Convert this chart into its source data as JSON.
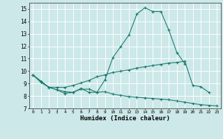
{
  "xlabel": "Humidex (Indice chaleur)",
  "bg_color": "#cce8e8",
  "grid_color": "#ffffff",
  "line_color": "#1a7a6e",
  "xlim": [
    -0.5,
    23.5
  ],
  "ylim": [
    7,
    15.5
  ],
  "xticks": [
    0,
    1,
    2,
    3,
    4,
    5,
    6,
    7,
    8,
    9,
    10,
    11,
    12,
    13,
    14,
    15,
    16,
    17,
    18,
    19,
    20,
    21,
    22,
    23
  ],
  "yticks": [
    7,
    8,
    9,
    10,
    11,
    12,
    13,
    14,
    15
  ],
  "line1_x": [
    0,
    1,
    2,
    3,
    4,
    5,
    6,
    7,
    8,
    9,
    10,
    11,
    12,
    13,
    14,
    15,
    16,
    17,
    18,
    19
  ],
  "line1_y": [
    9.7,
    9.2,
    8.7,
    8.5,
    8.2,
    8.3,
    8.6,
    8.3,
    8.3,
    9.3,
    11.1,
    12.0,
    12.9,
    14.6,
    15.1,
    14.8,
    14.8,
    13.3,
    11.5,
    10.6
  ],
  "line2_x": [
    0,
    1,
    2,
    3,
    4,
    5,
    6,
    7,
    8,
    9,
    10,
    11,
    12,
    13,
    14,
    15,
    16,
    17,
    18,
    19,
    20,
    21,
    22,
    23
  ],
  "line2_y": [
    9.7,
    9.1,
    8.7,
    8.5,
    8.35,
    8.3,
    8.55,
    8.55,
    8.3,
    8.35,
    8.15,
    8.05,
    7.95,
    7.9,
    7.85,
    7.8,
    7.75,
    7.7,
    7.6,
    7.5,
    7.4,
    7.3,
    7.25,
    7.2
  ],
  "line3_x": [
    0,
    1,
    2,
    3,
    4,
    5,
    6,
    7,
    8,
    9,
    10,
    11,
    12,
    13,
    14,
    15,
    16,
    17,
    18,
    19,
    20,
    21,
    22
  ],
  "line3_y": [
    9.7,
    9.1,
    8.7,
    8.7,
    8.7,
    8.85,
    9.05,
    9.25,
    9.55,
    9.7,
    9.9,
    10.0,
    10.1,
    10.25,
    10.35,
    10.45,
    10.55,
    10.65,
    10.7,
    10.8,
    8.85,
    8.75,
    8.3
  ]
}
